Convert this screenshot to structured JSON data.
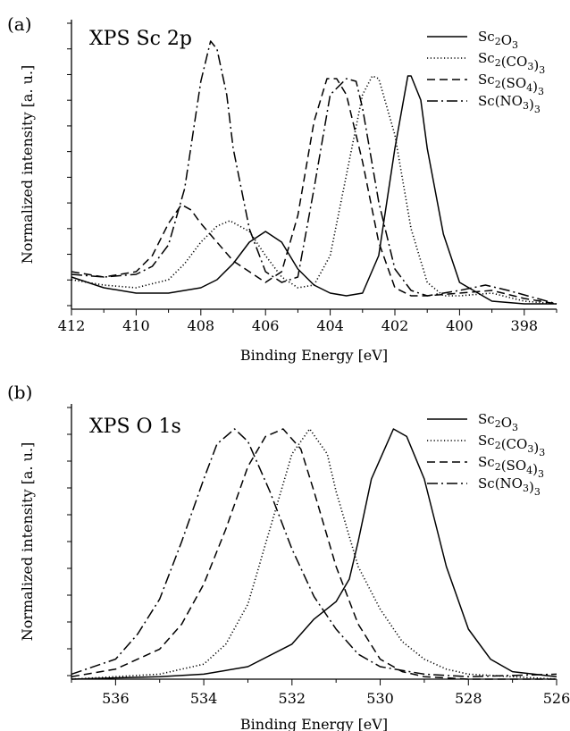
{
  "chart_data": [
    {
      "type": "line",
      "panel_label": "(a)",
      "title": "XPS Sc 2p",
      "xlabel": "Binding Energy [eV]",
      "ylabel": "Normalized intensity [a. u.]",
      "xlim": [
        412,
        397
      ],
      "ylim": [
        0,
        1.08
      ],
      "x_reversed": true,
      "xticks": [
        412,
        410,
        408,
        406,
        404,
        402,
        400,
        398
      ],
      "legend_position": "top-right",
      "series": [
        {
          "name": "Sc2O3",
          "legend": {
            "base": "Sc",
            "sub1": "2",
            "mid": "O",
            "sub2": "3",
            "close": ""
          },
          "dash": "solid",
          "points": [
            [
              412,
              0.12
            ],
            [
              411,
              0.08
            ],
            [
              410,
              0.06
            ],
            [
              409,
              0.06
            ],
            [
              408,
              0.08
            ],
            [
              407.5,
              0.11
            ],
            [
              407,
              0.17
            ],
            [
              406.5,
              0.25
            ],
            [
              406,
              0.29
            ],
            [
              405.5,
              0.25
            ],
            [
              405,
              0.15
            ],
            [
              404.5,
              0.09
            ],
            [
              404,
              0.06
            ],
            [
              403.5,
              0.05
            ],
            [
              403,
              0.06
            ],
            [
              402.5,
              0.2
            ],
            [
              402,
              0.6
            ],
            [
              401.6,
              0.87
            ],
            [
              401.5,
              0.87
            ],
            [
              401.2,
              0.78
            ],
            [
              401,
              0.6
            ],
            [
              400.5,
              0.28
            ],
            [
              400,
              0.1
            ],
            [
              399,
              0.03
            ],
            [
              398,
              0.02
            ],
            [
              397,
              0.02
            ]
          ]
        },
        {
          "name": "Sc2(CO3)3",
          "legend": {
            "base": "Sc",
            "sub1": "2",
            "mid": "(CO",
            "sub2": "3",
            "close": ")3"
          },
          "dash": "dotted",
          "points": [
            [
              412,
              0.11
            ],
            [
              411,
              0.09
            ],
            [
              410,
              0.08
            ],
            [
              409,
              0.11
            ],
            [
              408.5,
              0.17
            ],
            [
              408,
              0.25
            ],
            [
              407.5,
              0.31
            ],
            [
              407.1,
              0.33
            ],
            [
              406.5,
              0.29
            ],
            [
              406,
              0.2
            ],
            [
              405.5,
              0.12
            ],
            [
              405,
              0.08
            ],
            [
              404.5,
              0.09
            ],
            [
              404,
              0.2
            ],
            [
              403.5,
              0.5
            ],
            [
              403,
              0.8
            ],
            [
              402.7,
              0.87
            ],
            [
              402.5,
              0.86
            ],
            [
              402,
              0.65
            ],
            [
              401.5,
              0.3
            ],
            [
              401,
              0.1
            ],
            [
              400.5,
              0.05
            ],
            [
              400,
              0.05
            ],
            [
              399,
              0.06
            ],
            [
              398,
              0.03
            ],
            [
              397,
              0.02
            ]
          ]
        },
        {
          "name": "Sc2(SO4)3",
          "legend": {
            "base": "Sc",
            "sub1": "2",
            "mid": "(SO",
            "sub2": "4",
            "close": ")3"
          },
          "dash": "dashed",
          "points": [
            [
              412,
              0.14
            ],
            [
              411,
              0.12
            ],
            [
              410,
              0.14
            ],
            [
              409.5,
              0.2
            ],
            [
              409,
              0.32
            ],
            [
              408.6,
              0.39
            ],
            [
              408.3,
              0.37
            ],
            [
              408,
              0.32
            ],
            [
              407.5,
              0.25
            ],
            [
              407,
              0.18
            ],
            [
              406.5,
              0.14
            ],
            [
              406,
              0.1
            ],
            [
              405.5,
              0.14
            ],
            [
              405,
              0.35
            ],
            [
              404.5,
              0.7
            ],
            [
              404.1,
              0.86
            ],
            [
              403.8,
              0.86
            ],
            [
              403.5,
              0.8
            ],
            [
              403,
              0.55
            ],
            [
              402.5,
              0.25
            ],
            [
              402,
              0.08
            ],
            [
              401.5,
              0.05
            ],
            [
              401,
              0.05
            ],
            [
              400,
              0.06
            ],
            [
              399,
              0.07
            ],
            [
              398,
              0.04
            ],
            [
              397,
              0.02
            ]
          ]
        },
        {
          "name": "Sc(NO3)3",
          "legend": {
            "base": "Sc",
            "sub1": "",
            "mid": "(NO",
            "sub2": "3",
            "close": ")3"
          },
          "dash": "dashdot",
          "points": [
            [
              412,
              0.13
            ],
            [
              411,
              0.12
            ],
            [
              410,
              0.13
            ],
            [
              409.5,
              0.16
            ],
            [
              409,
              0.24
            ],
            [
              408.5,
              0.45
            ],
            [
              408,
              0.85
            ],
            [
              407.7,
              1.0
            ],
            [
              407.5,
              0.97
            ],
            [
              407.2,
              0.8
            ],
            [
              407,
              0.6
            ],
            [
              406.5,
              0.3
            ],
            [
              406,
              0.14
            ],
            [
              405.5,
              0.1
            ],
            [
              405,
              0.12
            ],
            [
              404.5,
              0.45
            ],
            [
              404,
              0.8
            ],
            [
              403.5,
              0.86
            ],
            [
              403.2,
              0.85
            ],
            [
              403,
              0.75
            ],
            [
              402.5,
              0.4
            ],
            [
              402,
              0.15
            ],
            [
              401.5,
              0.07
            ],
            [
              401,
              0.05
            ],
            [
              400,
              0.07
            ],
            [
              399.2,
              0.09
            ],
            [
              398.5,
              0.07
            ],
            [
              397,
              0.02
            ]
          ]
        }
      ]
    },
    {
      "type": "line",
      "panel_label": "(b)",
      "title": "XPS O 1s",
      "xlabel": "Binding Energy [eV]",
      "ylabel": "Normalized intensity [a. u.]",
      "xlim": [
        537,
        526
      ],
      "ylim": [
        0,
        1.1
      ],
      "x_reversed": true,
      "xticks": [
        536,
        534,
        532,
        530,
        528,
        526
      ],
      "legend_position": "top-right",
      "series": [
        {
          "name": "Sc2O3",
          "legend": {
            "base": "Sc",
            "sub1": "2",
            "mid": "O",
            "sub2": "3",
            "close": ""
          },
          "dash": "solid",
          "points": [
            [
              537,
              0.0
            ],
            [
              535,
              0.01
            ],
            [
              534,
              0.02
            ],
            [
              533,
              0.05
            ],
            [
              532,
              0.14
            ],
            [
              531.5,
              0.24
            ],
            [
              531,
              0.31
            ],
            [
              530.7,
              0.4
            ],
            [
              530.5,
              0.55
            ],
            [
              530.2,
              0.8
            ],
            [
              529.7,
              1.0
            ],
            [
              529.4,
              0.97
            ],
            [
              529,
              0.8
            ],
            [
              528.5,
              0.45
            ],
            [
              528,
              0.2
            ],
            [
              527.5,
              0.08
            ],
            [
              527,
              0.03
            ],
            [
              526,
              0.01
            ]
          ]
        },
        {
          "name": "Sc2(CO3)3",
          "legend": {
            "base": "Sc",
            "sub1": "2",
            "mid": "(CO",
            "sub2": "3",
            "close": ")3"
          },
          "dash": "dotted",
          "points": [
            [
              537,
              0.0
            ],
            [
              535,
              0.02
            ],
            [
              534,
              0.06
            ],
            [
              533.5,
              0.14
            ],
            [
              533,
              0.3
            ],
            [
              532.5,
              0.6
            ],
            [
              532,
              0.9
            ],
            [
              531.6,
              1.0
            ],
            [
              531.2,
              0.9
            ],
            [
              531,
              0.75
            ],
            [
              530.5,
              0.45
            ],
            [
              530,
              0.28
            ],
            [
              529.5,
              0.15
            ],
            [
              529,
              0.08
            ],
            [
              528.5,
              0.04
            ],
            [
              528,
              0.02
            ],
            [
              527,
              0.01
            ],
            [
              526,
              0.0
            ]
          ]
        },
        {
          "name": "Sc2(SO4)3",
          "legend": {
            "base": "Sc",
            "sub1": "2",
            "mid": "(SO",
            "sub2": "4",
            "close": ")3"
          },
          "dash": "dashed",
          "points": [
            [
              537,
              0.01
            ],
            [
              536,
              0.04
            ],
            [
              535,
              0.12
            ],
            [
              534.5,
              0.22
            ],
            [
              534,
              0.38
            ],
            [
              533.5,
              0.6
            ],
            [
              533,
              0.85
            ],
            [
              532.6,
              0.97
            ],
            [
              532.2,
              1.0
            ],
            [
              531.8,
              0.92
            ],
            [
              531.5,
              0.75
            ],
            [
              531,
              0.45
            ],
            [
              530.5,
              0.22
            ],
            [
              530,
              0.08
            ],
            [
              529.5,
              0.03
            ],
            [
              529,
              0.01
            ],
            [
              528,
              0.0
            ],
            [
              526,
              0.0
            ]
          ]
        },
        {
          "name": "Sc(NO3)3",
          "legend": {
            "base": "Sc",
            "sub1": "",
            "mid": "(NO",
            "sub2": "3",
            "close": ")3"
          },
          "dash": "dashdot",
          "points": [
            [
              537,
              0.02
            ],
            [
              536,
              0.08
            ],
            [
              535.5,
              0.18
            ],
            [
              535,
              0.32
            ],
            [
              534.5,
              0.55
            ],
            [
              534,
              0.8
            ],
            [
              533.7,
              0.94
            ],
            [
              533.3,
              1.0
            ],
            [
              533,
              0.95
            ],
            [
              532.5,
              0.75
            ],
            [
              532,
              0.52
            ],
            [
              531.5,
              0.33
            ],
            [
              531,
              0.2
            ],
            [
              530.5,
              0.1
            ],
            [
              530,
              0.05
            ],
            [
              529,
              0.02
            ],
            [
              528,
              0.01
            ],
            [
              526,
              0.02
            ]
          ]
        }
      ]
    }
  ]
}
